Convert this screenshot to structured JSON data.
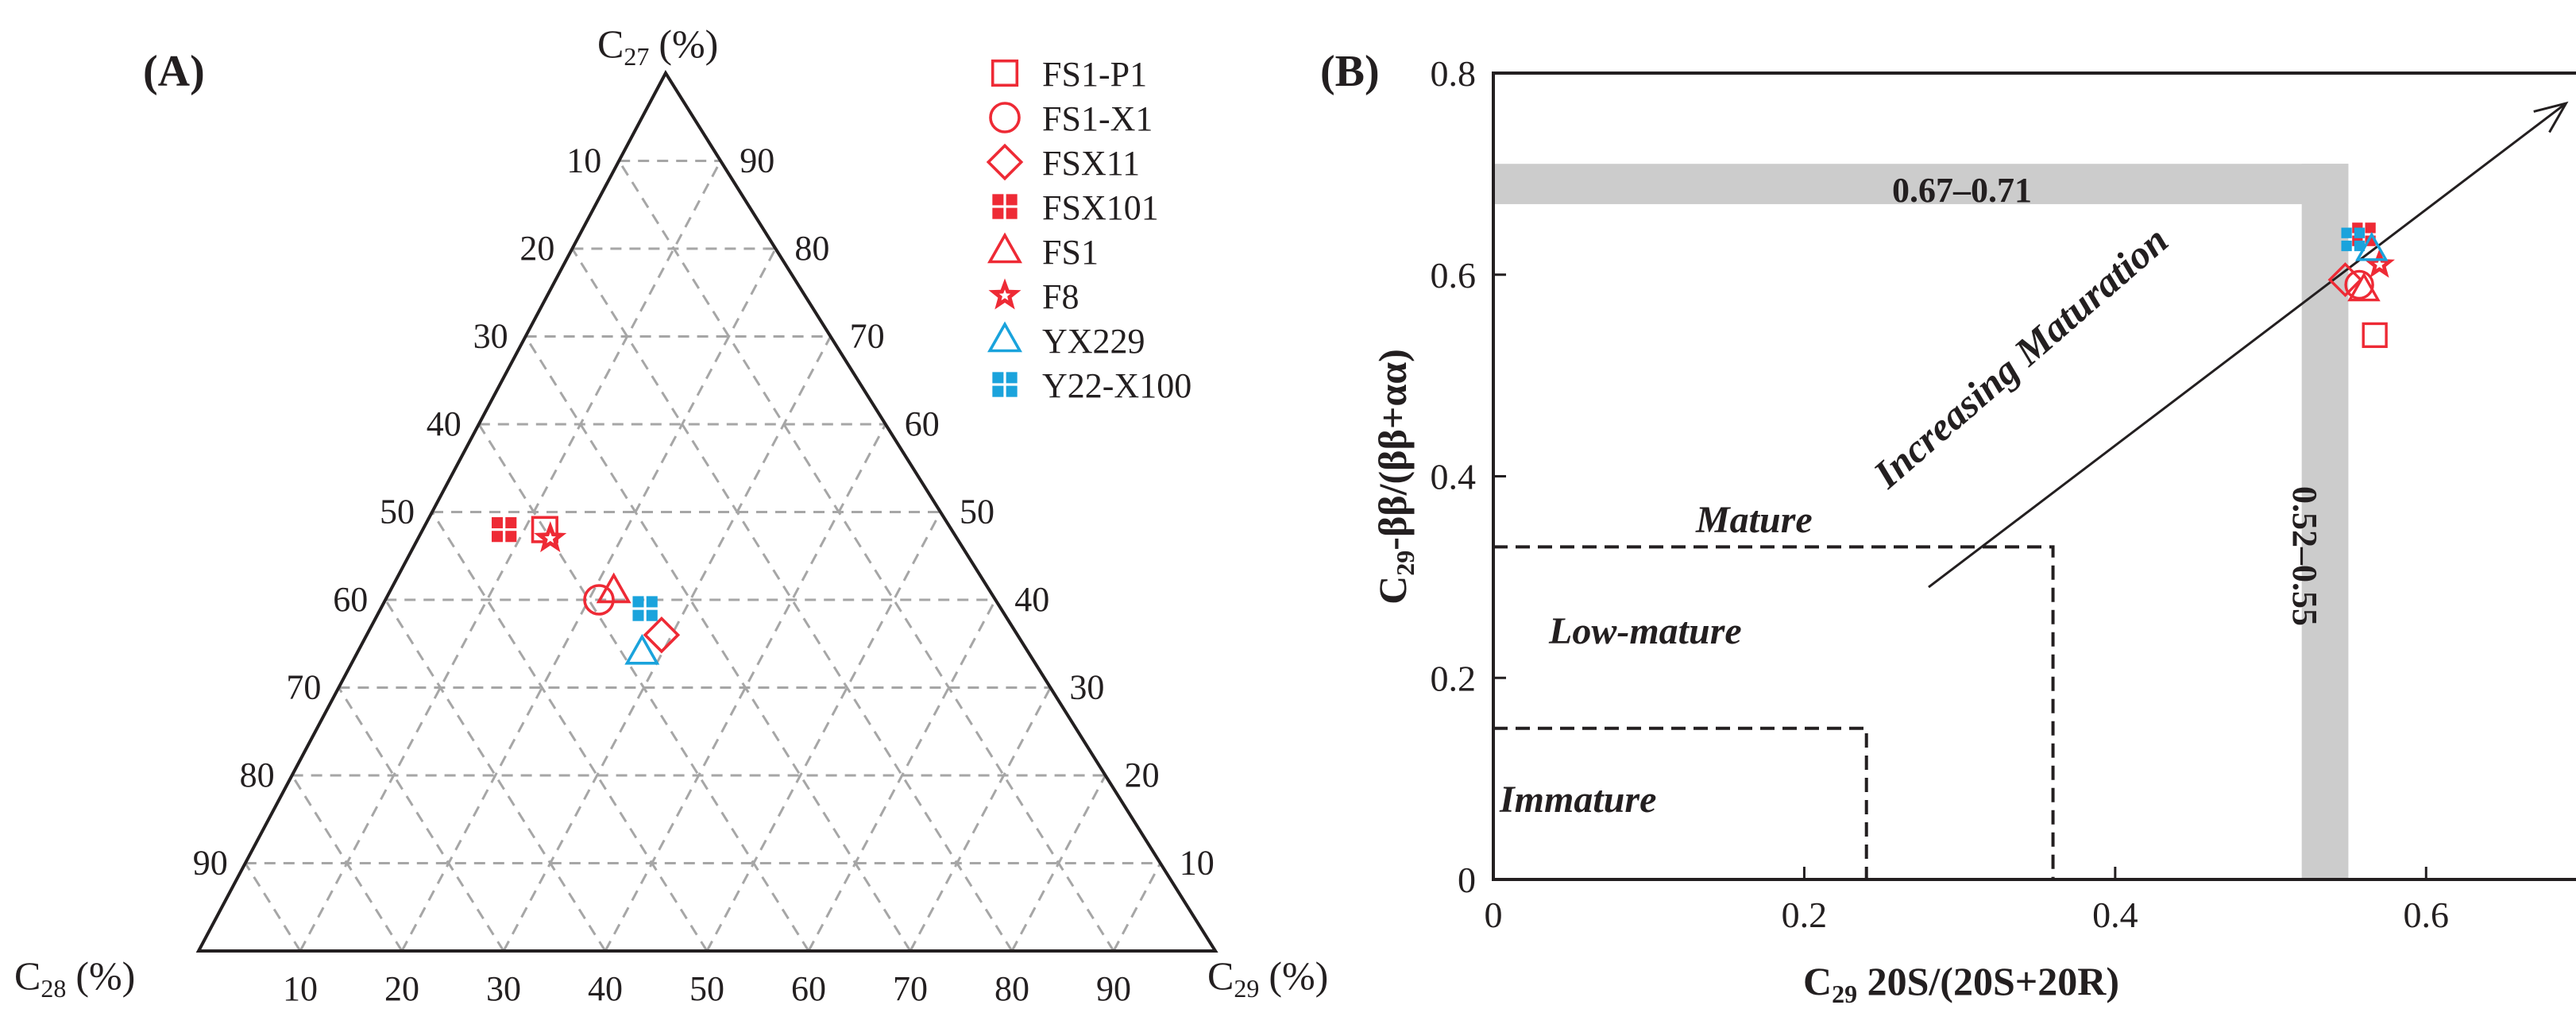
{
  "colors": {
    "red": "#ee2a35",
    "blue": "#1aa3dc",
    "grid": "#a6a6a6",
    "band": "#cccccc",
    "axis": "#231f20"
  },
  "panel_a": {
    "label": "(A)",
    "apex_top": {
      "base": "C",
      "sub": "27",
      "unit": "(%)"
    },
    "apex_left": {
      "base": "C",
      "sub": "28",
      "unit": "(%)"
    },
    "apex_right": {
      "base": "C",
      "sub": "29",
      "unit": "(%)"
    }
  },
  "panel_b": {
    "label": "(B)",
    "xlabel": {
      "base": "C",
      "sub": "29",
      "rest": " 20S/(20S+20R)"
    },
    "ylabel": {
      "base": "C",
      "sub": "29",
      "rest": "-ββ/(ββ+αα)"
    },
    "band_h_label": "0.67–0.71",
    "band_v_label": "0.52–0.55",
    "zones": {
      "immature": "Immature",
      "low_mature": "Low-mature",
      "mature": "Mature"
    },
    "arrow_label": "Increasing Maturation"
  },
  "legend": [
    {
      "name": "FS1-P1",
      "marker": "square",
      "color": "red"
    },
    {
      "name": "FS1-X1",
      "marker": "circle",
      "color": "red"
    },
    {
      "name": "FSX11",
      "marker": "diamond",
      "color": "red"
    },
    {
      "name": "FSX101",
      "marker": "quad",
      "color": "red"
    },
    {
      "name": "FS1",
      "marker": "triangle",
      "color": "red"
    },
    {
      "name": "F8",
      "marker": "star",
      "color": "red"
    },
    {
      "name": "YX229",
      "marker": "triangle",
      "color": "blue"
    },
    {
      "name": "Y22-X100",
      "marker": "quad",
      "color": "blue"
    }
  ],
  "chart_data": [
    {
      "type": "scatter",
      "subtype": "ternary",
      "title": "(A)",
      "axes": [
        "C27 (%)",
        "C28 (%)",
        "C29 (%)"
      ],
      "ticks": [
        10,
        20,
        30,
        40,
        50,
        60,
        70,
        80,
        90
      ],
      "grid": true,
      "points": [
        {
          "sample": "FS1-P1",
          "c27": 48,
          "c28": 40,
          "c29": 12
        },
        {
          "sample": "FS1-X1",
          "c27": 40,
          "c28": 39,
          "c29": 21
        },
        {
          "sample": "FSX11",
          "c27": 36,
          "c28": 35,
          "c29": 29
        },
        {
          "sample": "FSX101",
          "c27": 48,
          "c28": 44,
          "c29": 8
        },
        {
          "sample": "FS1",
          "c27": 41,
          "c28": 37,
          "c29": 22
        },
        {
          "sample": "F8",
          "c27": 47,
          "c28": 40,
          "c29": 13
        },
        {
          "sample": "YX229",
          "c27": 34,
          "c28": 38,
          "c29": 28
        },
        {
          "sample": "Y22-X100",
          "c27": 39,
          "c28": 35,
          "c29": 26
        }
      ]
    },
    {
      "type": "scatter",
      "title": "(B)",
      "xlabel": "C29 20S/(20S+20R)",
      "ylabel": "C29-ββ/(ββ+αα)",
      "xlim": [
        0,
        0.7
      ],
      "ylim": [
        0,
        0.8
      ],
      "xticks": [
        0,
        0.2,
        0.4,
        0.6
      ],
      "yticks": [
        0,
        0.2,
        0.4,
        0.6,
        0.8
      ],
      "ytick_labels": [
        "0",
        "0.2",
        "0.4",
        "0.6",
        "0.8"
      ],
      "xtick_labels": [
        "0",
        "0.2",
        "0.4",
        "0.6"
      ],
      "equilibrium_bands": {
        "y_range": [
          0.67,
          0.71
        ],
        "x_range": [
          0.52,
          0.55
        ]
      },
      "zones": [
        {
          "name": "Immature",
          "x_max": 0.24,
          "y_max": 0.15
        },
        {
          "name": "Low-mature",
          "x_max": 0.36,
          "y_max": 0.33
        },
        {
          "name": "Mature",
          "x_max": 0.55,
          "y_max": 0.71
        }
      ],
      "arrow": {
        "from": [
          0.28,
          0.29
        ],
        "to": [
          0.69,
          0.77
        ],
        "label": "Increasing Maturation"
      },
      "points": [
        {
          "sample": "FS1-P1",
          "x": 0.567,
          "y": 0.54
        },
        {
          "sample": "FS1-X1",
          "x": 0.557,
          "y": 0.59
        },
        {
          "sample": "FSX11",
          "x": 0.548,
          "y": 0.595
        },
        {
          "sample": "FSX101",
          "x": 0.56,
          "y": 0.64
        },
        {
          "sample": "FS1",
          "x": 0.56,
          "y": 0.585
        },
        {
          "sample": "F8",
          "x": 0.57,
          "y": 0.61
        },
        {
          "sample": "YX229",
          "x": 0.565,
          "y": 0.625
        },
        {
          "sample": "Y22-X100",
          "x": 0.553,
          "y": 0.635
        }
      ]
    }
  ]
}
